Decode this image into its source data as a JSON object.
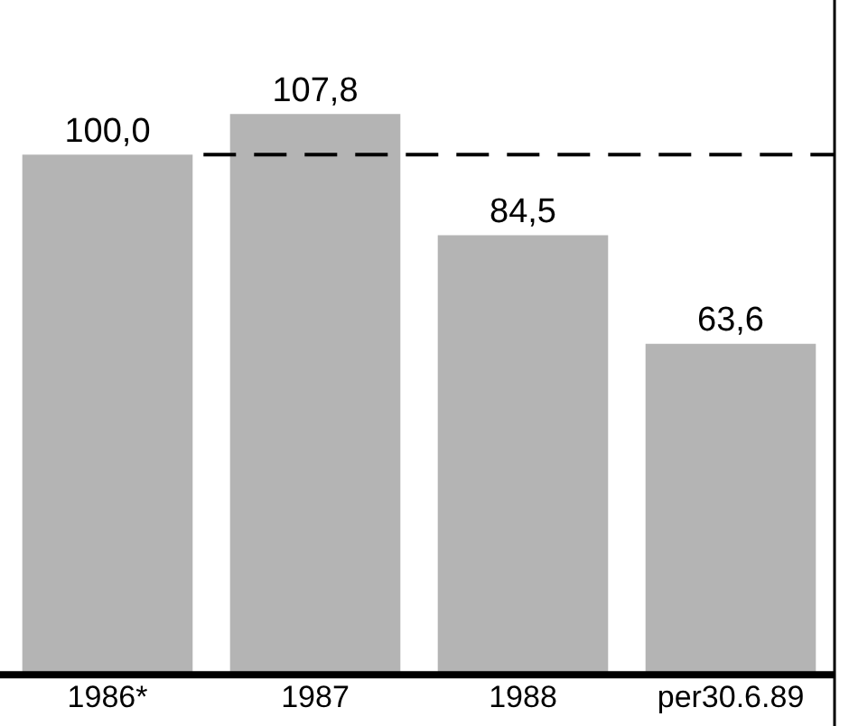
{
  "chart_data": {
    "type": "bar",
    "categories": [
      "1986*",
      "1987",
      "1988",
      "per30.6.89"
    ],
    "values": [
      100.0,
      107.8,
      84.5,
      63.6
    ],
    "value_labels": [
      "100,0",
      "107,8",
      "84,5",
      "63,6"
    ],
    "color": "#b4b4b4",
    "ref_lines": [
      {
        "axis": "y",
        "value": 100,
        "color": "#000000",
        "line_style": "dashed"
      }
    ],
    "grid": false,
    "legend": false
  }
}
